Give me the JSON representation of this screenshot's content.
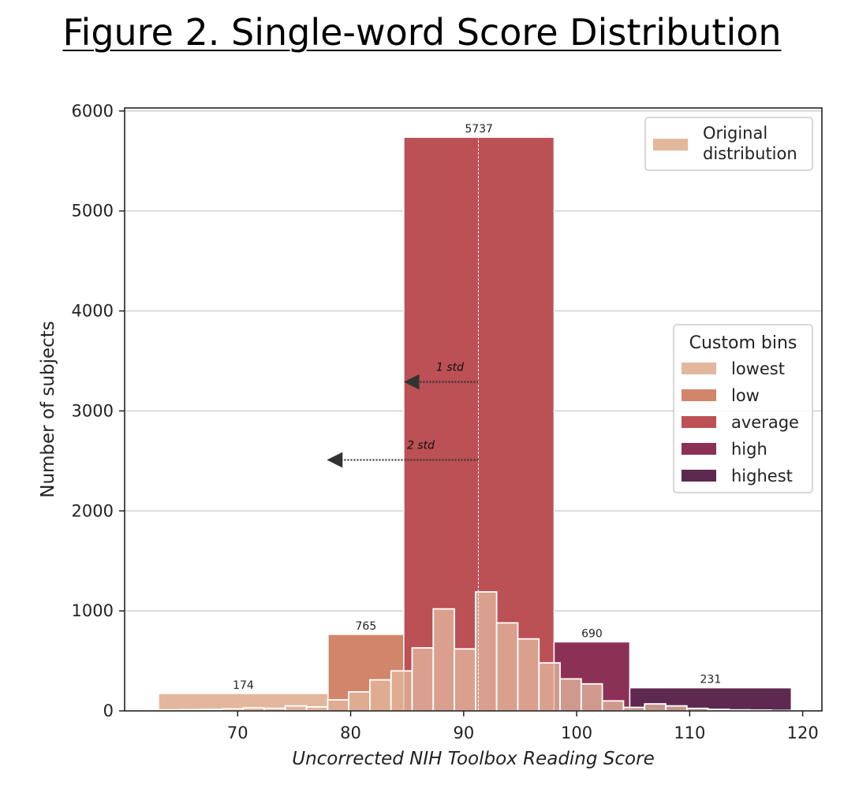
{
  "figure_title": "Figure 2. Single-word Score Distribution",
  "chart_data": {
    "type": "bar",
    "title": "",
    "xlabel": "Uncorrected NIH Toolbox Reading Score",
    "ylabel": "Number of subjects",
    "xlim": [
      60,
      121.7
    ],
    "ylim": [
      0,
      6030
    ],
    "xticks": [
      70,
      80,
      90,
      100,
      110,
      120
    ],
    "yticks": [
      0,
      1000,
      2000,
      3000,
      4000,
      5000,
      6000
    ],
    "grid": "horizontal",
    "custom_bins": [
      {
        "name": "lowest",
        "x0": 63,
        "x1": 78,
        "count": 174,
        "label": "174",
        "color": "#e3b79d"
      },
      {
        "name": "low",
        "x0": 78,
        "x1": 84.7,
        "count": 765,
        "label": "765",
        "color": "#d1856a"
      },
      {
        "name": "average",
        "x0": 84.7,
        "x1": 98,
        "count": 5737,
        "label": "5737",
        "color": "#bb5055"
      },
      {
        "name": "high",
        "x0": 98,
        "x1": 104.7,
        "count": 690,
        "label": "690",
        "color": "#8c3156"
      },
      {
        "name": "highest",
        "x0": 104.7,
        "x1": 119,
        "count": 231,
        "label": "231",
        "color": "#5e2950"
      }
    ],
    "original_distribution": {
      "name": "Original distribution",
      "color": "#e3b79d",
      "bin_width": 1.87,
      "bins": [
        {
          "x0": 63.0,
          "count": 10
        },
        {
          "x0": 64.87,
          "count": 12
        },
        {
          "x0": 66.74,
          "count": 15
        },
        {
          "x0": 68.61,
          "count": 20
        },
        {
          "x0": 70.48,
          "count": 30
        },
        {
          "x0": 72.35,
          "count": 25
        },
        {
          "x0": 74.22,
          "count": 50
        },
        {
          "x0": 76.09,
          "count": 40
        },
        {
          "x0": 77.96,
          "count": 110
        },
        {
          "x0": 79.83,
          "count": 190
        },
        {
          "x0": 81.7,
          "count": 310
        },
        {
          "x0": 83.57,
          "count": 400
        },
        {
          "x0": 85.44,
          "count": 630
        },
        {
          "x0": 87.31,
          "count": 1020
        },
        {
          "x0": 89.18,
          "count": 620
        },
        {
          "x0": 91.05,
          "count": 1190
        },
        {
          "x0": 92.92,
          "count": 880
        },
        {
          "x0": 94.79,
          "count": 720
        },
        {
          "x0": 96.66,
          "count": 480
        },
        {
          "x0": 98.53,
          "count": 320
        },
        {
          "x0": 100.4,
          "count": 270
        },
        {
          "x0": 102.27,
          "count": 100
        },
        {
          "x0": 104.14,
          "count": 35
        },
        {
          "x0": 106.01,
          "count": 70
        },
        {
          "x0": 107.88,
          "count": 50
        },
        {
          "x0": 109.75,
          "count": 25
        },
        {
          "x0": 111.62,
          "count": 15
        },
        {
          "x0": 113.49,
          "count": 10
        },
        {
          "x0": 115.36,
          "count": 8
        },
        {
          "x0": 117.23,
          "count": 5
        }
      ]
    },
    "mean_line_x": 91.3,
    "annotations": [
      {
        "text": "1 std",
        "y": 3290,
        "from_x": 91.3,
        "to_x": 84.7
      },
      {
        "text": "2 std",
        "y": 2510,
        "from_x": 91.3,
        "to_x": 77.9
      }
    ],
    "legend_original": {
      "placement": "top-right"
    },
    "legend_bins": {
      "title": "Custom bins",
      "placement": "center-right"
    }
  }
}
